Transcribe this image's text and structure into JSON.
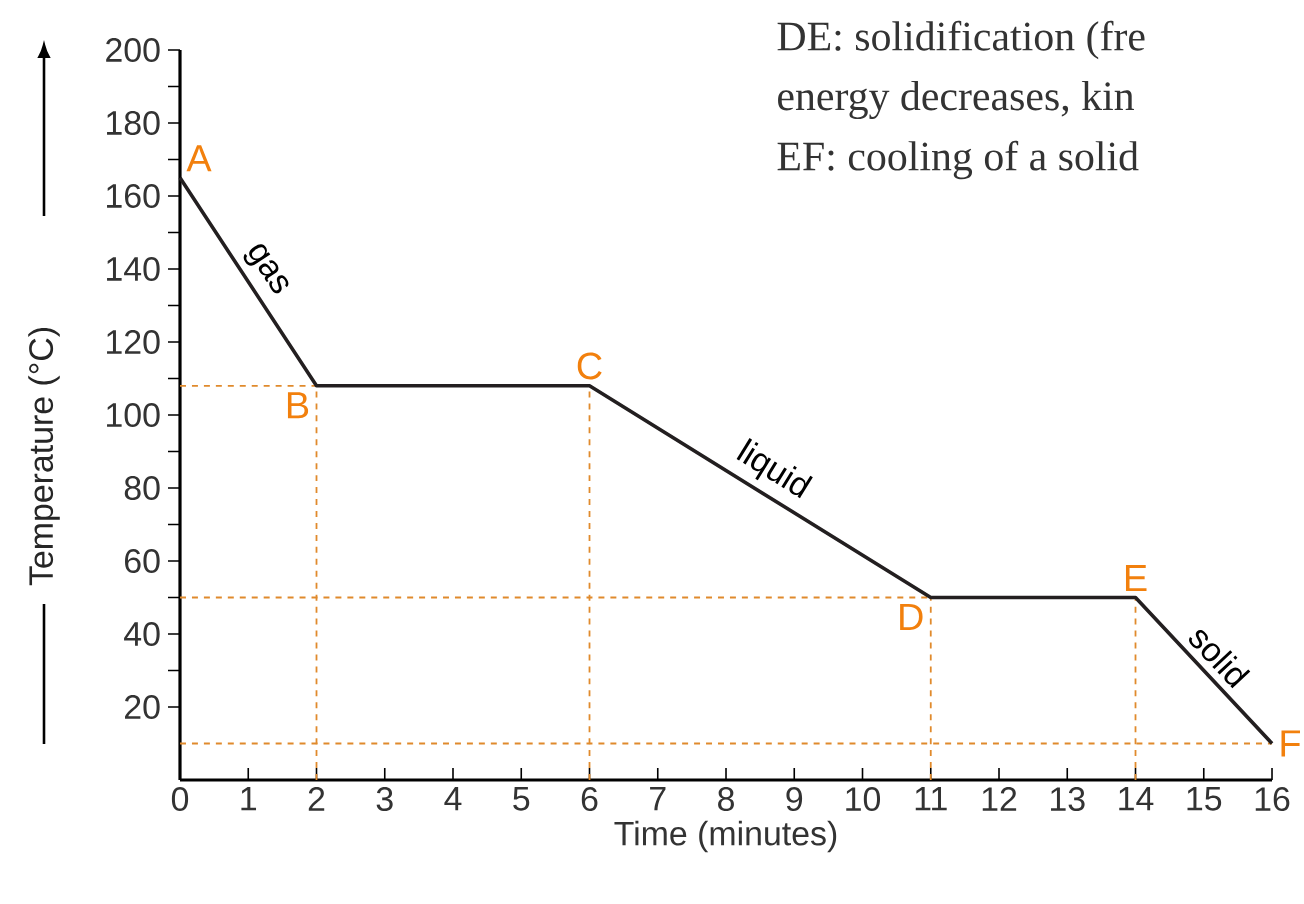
{
  "chart_data": {
    "type": "line",
    "xlabel": "Time (minutes)",
    "ylabel": "Temperature (°C)",
    "x": [
      0,
      2,
      6,
      11,
      14,
      16
    ],
    "series": [
      {
        "color": "#231f20",
        "values": [
          165,
          108,
          108,
          50,
          50,
          10
        ],
        "value_labels": [
          "A",
          "B",
          "C",
          "D",
          "E",
          "F"
        ]
      }
    ],
    "xlim": [
      0,
      16
    ],
    "ylim": [
      0,
      200
    ],
    "xticks": [
      0,
      1,
      2,
      3,
      4,
      5,
      6,
      7,
      8,
      9,
      10,
      11,
      12,
      13,
      14,
      15,
      16
    ],
    "yticks": [
      20,
      40,
      60,
      80,
      100,
      120,
      140,
      160,
      180,
      200
    ],
    "marker": "none",
    "line_style": "solid",
    "ref_lines": [
      {
        "axis": "y",
        "value": 108,
        "color": "#e08a2c",
        "line_style": "dashed"
      },
      {
        "axis": "y",
        "value": 50,
        "color": "#e08a2c",
        "line_style": "dashed"
      },
      {
        "axis": "y",
        "value": 10,
        "color": "#e08a2c",
        "line_style": "dashed"
      },
      {
        "axis": "x",
        "value": 2,
        "color": "#e08a2c",
        "line_style": "dashed"
      },
      {
        "axis": "x",
        "value": 6,
        "color": "#e08a2c",
        "line_style": "dashed"
      },
      {
        "axis": "x",
        "value": 11,
        "color": "#e08a2c",
        "line_style": "dashed"
      },
      {
        "axis": "x",
        "value": 14,
        "color": "#e08a2c",
        "line_style": "dashed"
      }
    ],
    "annotations": [
      {
        "text": "gas",
        "x": 1,
        "y": 136.5
      },
      {
        "text": "liquid",
        "x": 8.5,
        "y": 79
      },
      {
        "text": "solid",
        "x": 15,
        "y": 30
      },
      "DE: solidification (fre",
      "energy decreases, kin",
      "EF: cooling of a solid"
    ]
  }
}
